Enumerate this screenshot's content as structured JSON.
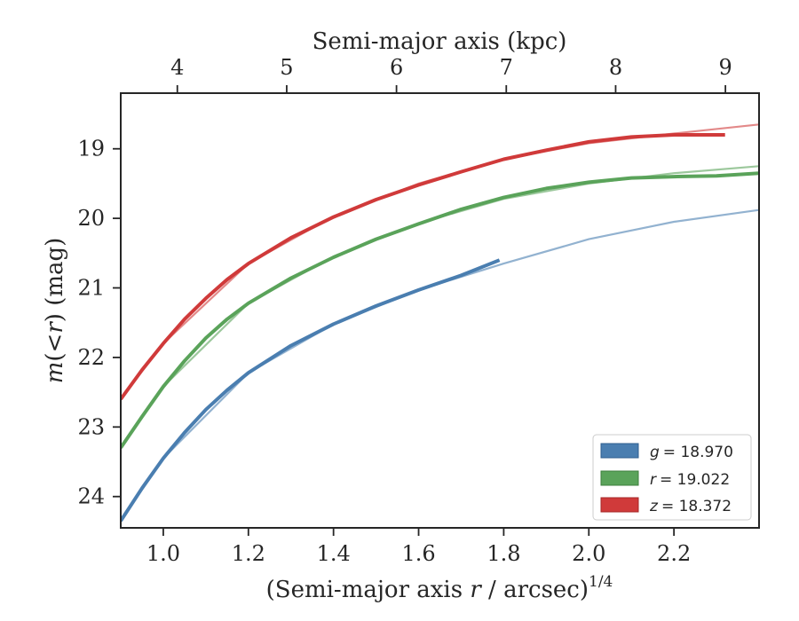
{
  "chart_data": {
    "type": "line",
    "title": "",
    "xlabel": "(Semi-major axis r / arcsec)^1/4",
    "xlabel_parts": {
      "prefix": "(Semi-major axis ",
      "var": "r",
      "mid": " / arcsec)",
      "sup": "1/4"
    },
    "ylabel": "m(<r) (mag)",
    "ylabel_parts": {
      "var": "m",
      "mid": "(",
      "lt": "<",
      "var2": "r",
      "suffix": ") (mag)"
    },
    "top_xlabel": "Semi-major axis (kpc)",
    "xlim": [
      0.9,
      2.4
    ],
    "ylim": [
      24.45,
      18.2
    ],
    "y_inverted": true,
    "x_ticks": [
      1.0,
      1.2,
      1.4,
      1.6,
      1.8,
      2.0,
      2.2
    ],
    "x_tick_labels": [
      "1.0",
      "1.2",
      "1.4",
      "1.6",
      "1.8",
      "2.0",
      "2.2"
    ],
    "y_ticks": [
      19,
      20,
      21,
      22,
      23,
      24
    ],
    "y_tick_labels": [
      "19",
      "20",
      "21",
      "22",
      "23",
      "24"
    ],
    "top_ticks": [
      {
        "label": "4",
        "x": 1.033
      },
      {
        "label": "5",
        "x": 1.29
      },
      {
        "label": "6",
        "x": 1.548
      },
      {
        "label": "7",
        "x": 1.806
      },
      {
        "label": "8",
        "x": 2.063
      },
      {
        "label": "9",
        "x": 2.321
      }
    ],
    "grid": false,
    "legend_position": "lower-right",
    "series": [
      {
        "name": "g = 18.970",
        "legend_var": "g",
        "legend_value": "= 18.970",
        "color": "#4a7eb0",
        "data": [
          [
            0.9,
            24.35
          ],
          [
            0.95,
            23.88
          ],
          [
            1.0,
            23.45
          ],
          [
            1.05,
            23.08
          ],
          [
            1.1,
            22.75
          ],
          [
            1.15,
            22.47
          ],
          [
            1.2,
            22.22
          ],
          [
            1.3,
            21.83
          ],
          [
            1.4,
            21.52
          ],
          [
            1.5,
            21.26
          ],
          [
            1.6,
            21.03
          ],
          [
            1.7,
            20.82
          ],
          [
            1.79,
            20.6
          ]
        ],
        "model": [
          [
            0.9,
            24.35
          ],
          [
            1.0,
            23.45
          ],
          [
            1.2,
            22.22
          ],
          [
            1.4,
            21.52
          ],
          [
            1.6,
            21.03
          ],
          [
            1.8,
            20.65
          ],
          [
            2.0,
            20.3
          ],
          [
            2.2,
            20.05
          ],
          [
            2.4,
            19.88
          ]
        ]
      },
      {
        "name": "r = 19.022",
        "legend_var": "r",
        "legend_value": "= 19.022",
        "color": "#5aa35a",
        "data": [
          [
            0.9,
            23.3
          ],
          [
            0.95,
            22.85
          ],
          [
            1.0,
            22.42
          ],
          [
            1.05,
            22.05
          ],
          [
            1.1,
            21.72
          ],
          [
            1.15,
            21.45
          ],
          [
            1.2,
            21.22
          ],
          [
            1.3,
            20.86
          ],
          [
            1.4,
            20.56
          ],
          [
            1.5,
            20.3
          ],
          [
            1.6,
            20.08
          ],
          [
            1.7,
            19.87
          ],
          [
            1.8,
            19.7
          ],
          [
            1.9,
            19.57
          ],
          [
            2.0,
            19.48
          ],
          [
            2.1,
            19.42
          ],
          [
            2.2,
            19.4
          ],
          [
            2.3,
            19.39
          ],
          [
            2.4,
            19.35
          ]
        ],
        "model": [
          [
            0.9,
            23.3
          ],
          [
            1.0,
            22.42
          ],
          [
            1.2,
            21.22
          ],
          [
            1.4,
            20.55
          ],
          [
            1.6,
            20.07
          ],
          [
            1.8,
            19.72
          ],
          [
            2.0,
            19.5
          ],
          [
            2.2,
            19.35
          ],
          [
            2.4,
            19.25
          ]
        ]
      },
      {
        "name": "z = 18.372",
        "legend_var": "z",
        "legend_value": "= 18.372",
        "color": "#d03a3a",
        "data": [
          [
            0.9,
            22.6
          ],
          [
            0.95,
            22.18
          ],
          [
            1.0,
            21.8
          ],
          [
            1.05,
            21.45
          ],
          [
            1.1,
            21.15
          ],
          [
            1.15,
            20.88
          ],
          [
            1.2,
            20.65
          ],
          [
            1.3,
            20.28
          ],
          [
            1.4,
            19.98
          ],
          [
            1.5,
            19.73
          ],
          [
            1.6,
            19.52
          ],
          [
            1.7,
            19.33
          ],
          [
            1.8,
            19.15
          ],
          [
            1.9,
            19.02
          ],
          [
            2.0,
            18.9
          ],
          [
            2.1,
            18.83
          ],
          [
            2.2,
            18.8
          ],
          [
            2.32,
            18.8
          ]
        ],
        "model": [
          [
            0.9,
            22.6
          ],
          [
            1.0,
            21.8
          ],
          [
            1.2,
            20.65
          ],
          [
            1.4,
            19.97
          ],
          [
            1.6,
            19.5
          ],
          [
            1.8,
            19.15
          ],
          [
            2.0,
            18.92
          ],
          [
            2.2,
            18.78
          ],
          [
            2.4,
            18.65
          ]
        ]
      }
    ]
  }
}
